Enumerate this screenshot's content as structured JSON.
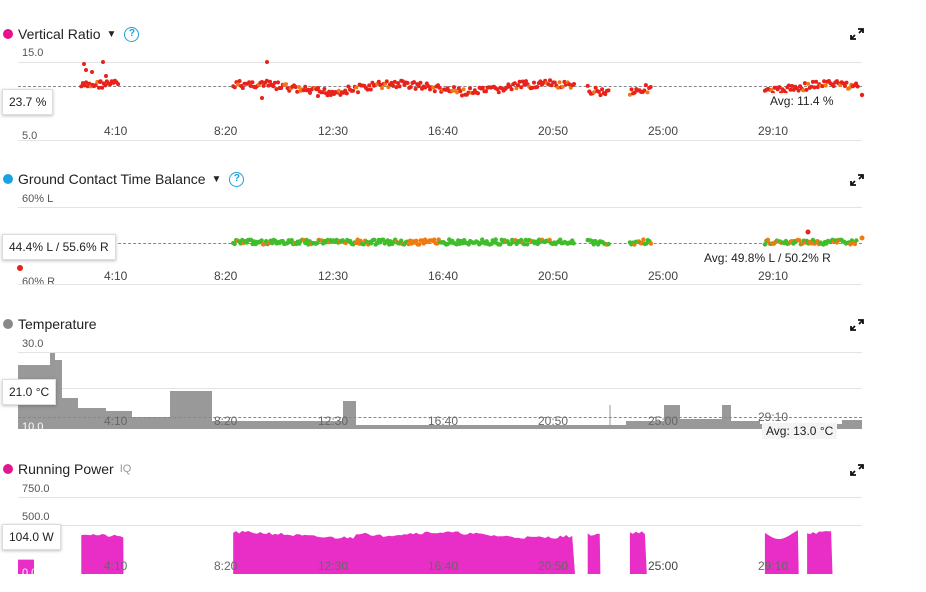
{
  "x_ticks": [
    "4:10",
    "8:20",
    "12:30",
    "16:40",
    "20:50",
    "25:00",
    "29:10"
  ],
  "colors": {
    "vertical_ratio": "#e8128c",
    "gct_balance": "#1aa3e0",
    "temperature": "#888888",
    "power": "#e3178f",
    "red_points": "#e8221a",
    "orange_points": "#f07a12",
    "green_points": "#3fbd2b",
    "power_fill": "#e82ec7",
    "temp_fill": "#999999"
  },
  "panels": {
    "vertical_ratio": {
      "title": "Vertical Ratio",
      "y_top": "15.0",
      "y_bottom": "5.0",
      "cursor_value": "23.7 %",
      "avg": "Avg: 11.4 %"
    },
    "gct_balance": {
      "title": "Ground Contact Time Balance",
      "y_top": "60% L",
      "y_bottom": "60% R",
      "cursor_value": "44.4% L / 55.6% R",
      "avg": "Avg: 49.8% L / 50.2% R"
    },
    "temperature": {
      "title": "Temperature",
      "y_top": "30.0",
      "y_bottom": "10.0",
      "cursor_value": "21.0 °C",
      "avg": "Avg: 13.0 °C"
    },
    "power": {
      "title": "Running Power",
      "badge": "IQ",
      "y_top": "750.0",
      "y_mid": "500.0",
      "y_bottom": "0.0",
      "cursor_value": "104.0 W"
    }
  },
  "chart_data": [
    {
      "type": "scatter",
      "title": "Vertical Ratio",
      "ylim": [
        5.0,
        15.0
      ],
      "avg": 11.4,
      "segments": [
        [
          0.075,
          0.12
        ],
        [
          0.255,
          0.66
        ],
        [
          0.675,
          0.7
        ],
        [
          0.725,
          0.75
        ],
        [
          0.885,
          0.995
        ]
      ]
    },
    {
      "type": "scatter",
      "title": "Ground Contact Time Balance",
      "avg": "49.8% L / 50.2% R",
      "segments": [
        [
          0.255,
          0.66
        ],
        [
          0.675,
          0.7
        ],
        [
          0.725,
          0.75
        ],
        [
          0.885,
          0.995
        ]
      ]
    },
    {
      "type": "area",
      "title": "Temperature",
      "ylim": [
        10.0,
        30.0
      ],
      "avg": 13.0
    },
    {
      "type": "area",
      "title": "Running Power",
      "ylim": [
        0,
        750
      ],
      "segments": [
        [
          0.075,
          0.125
        ],
        [
          0.255,
          0.66
        ],
        [
          0.675,
          0.69
        ],
        [
          0.725,
          0.745
        ],
        [
          0.885,
          0.925
        ],
        [
          0.935,
          0.965
        ]
      ]
    }
  ]
}
